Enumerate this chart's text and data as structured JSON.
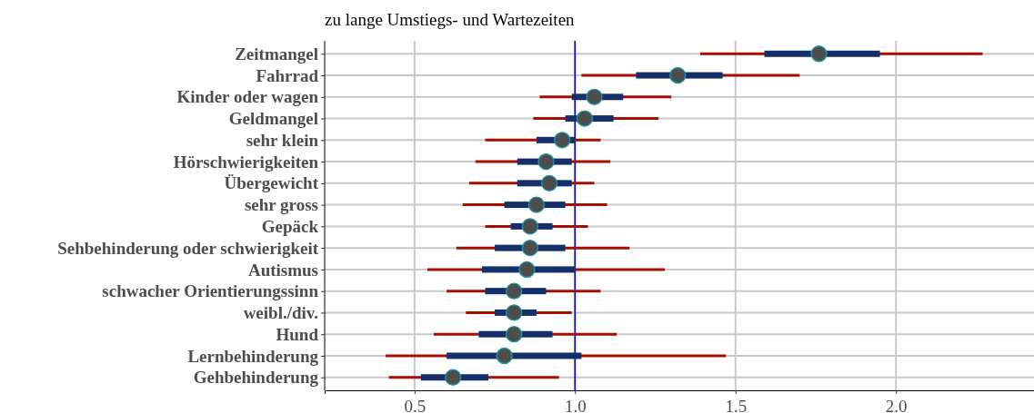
{
  "chart_data": {
    "type": "box",
    "orientation": "horizontal",
    "title": "zu lange Umstiegs- und Wartezeiten",
    "categories": [
      "Zeitmangel",
      "Fahrrad",
      "Kinder oder wagen",
      "Geldmangel",
      "sehr klein",
      "Hörschwierigkeiten",
      "Übergewicht",
      "sehr gross",
      "Gepäck",
      "Sehbehinderung oder schwierigkeit",
      "Autismus",
      "schwacher Orientierungssinn",
      "weibl./div.",
      "Hund",
      "Lernbehinderung",
      "Gehbehinderung"
    ],
    "series": [
      {
        "color": "#14306b",
        "boxes": [
          {
            "low": 1.39,
            "q1": 1.59,
            "median": 1.76,
            "q3": 1.95,
            "high": 2.27
          },
          {
            "low": 1.02,
            "q1": 1.19,
            "median": 1.32,
            "q3": 1.46,
            "high": 1.7
          },
          {
            "low": 0.89,
            "q1": 0.99,
            "median": 1.06,
            "q3": 1.15,
            "high": 1.3
          },
          {
            "low": 0.87,
            "q1": 0.97,
            "median": 1.03,
            "q3": 1.12,
            "high": 1.26
          },
          {
            "low": 0.72,
            "q1": 0.88,
            "median": 0.96,
            "q3": 1.0,
            "high": 1.08
          },
          {
            "low": 0.69,
            "q1": 0.82,
            "median": 0.91,
            "q3": 0.99,
            "high": 1.11
          },
          {
            "low": 0.67,
            "q1": 0.82,
            "median": 0.92,
            "q3": 0.99,
            "high": 1.06
          },
          {
            "low": 0.65,
            "q1": 0.78,
            "median": 0.88,
            "q3": 0.97,
            "high": 1.1
          },
          {
            "low": 0.72,
            "q1": 0.8,
            "median": 0.86,
            "q3": 0.93,
            "high": 1.04
          },
          {
            "low": 0.63,
            "q1": 0.75,
            "median": 0.86,
            "q3": 0.97,
            "high": 1.17
          },
          {
            "low": 0.54,
            "q1": 0.71,
            "median": 0.85,
            "q3": 1.0,
            "high": 1.28
          },
          {
            "low": 0.6,
            "q1": 0.72,
            "median": 0.81,
            "q3": 0.91,
            "high": 1.08
          },
          {
            "low": 0.66,
            "q1": 0.75,
            "median": 0.81,
            "q3": 0.88,
            "high": 0.99
          },
          {
            "low": 0.56,
            "q1": 0.7,
            "median": 0.81,
            "q3": 0.93,
            "high": 1.13
          },
          {
            "low": 0.41,
            "q1": 0.6,
            "median": 0.78,
            "q3": 1.02,
            "high": 1.47
          },
          {
            "low": 0.42,
            "q1": 0.52,
            "median": 0.62,
            "q3": 0.73,
            "high": 0.95
          }
        ]
      }
    ],
    "xlim": [
      0.22,
      2.43
    ],
    "xticks": [
      {
        "value": 0.5,
        "label": "0.5"
      },
      {
        "value": 1,
        "label": "1.0"
      },
      {
        "value": 1.5,
        "label": "1.5"
      },
      {
        "value": 2,
        "label": "2.0"
      }
    ],
    "grid": true,
    "ref_lines": [
      {
        "axis": "x",
        "value": 1,
        "color": "#0000ee"
      }
    ]
  }
}
